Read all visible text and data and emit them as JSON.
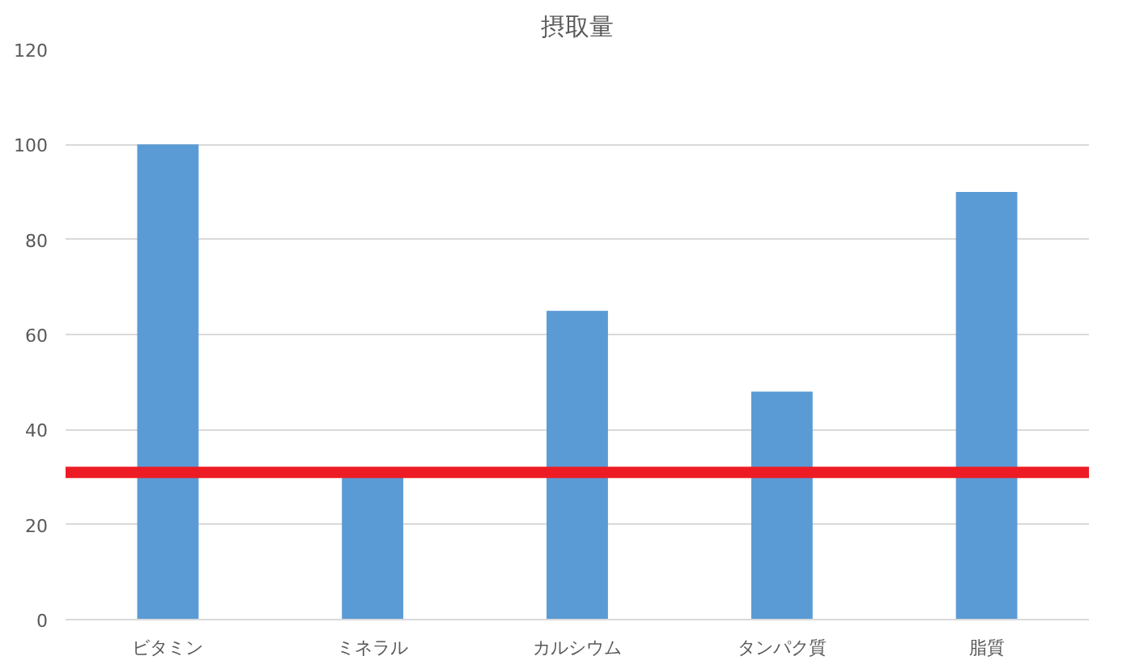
{
  "chart_data": {
    "type": "bar",
    "title": "摂取量",
    "categories": [
      "ビタミン",
      "ミネラル",
      "カルシウム",
      "タンパク質",
      "脂質"
    ],
    "values": [
      100,
      30,
      65,
      48,
      90
    ],
    "color": "#5b9bd5",
    "ylim": [
      0,
      120
    ],
    "yticks": [
      0,
      20,
      40,
      60,
      80,
      100,
      120
    ],
    "grid": "y",
    "ref_lines": [
      {
        "axis": "y",
        "value": 31,
        "color": "#ed1c24",
        "line_style": "solid"
      }
    ]
  }
}
